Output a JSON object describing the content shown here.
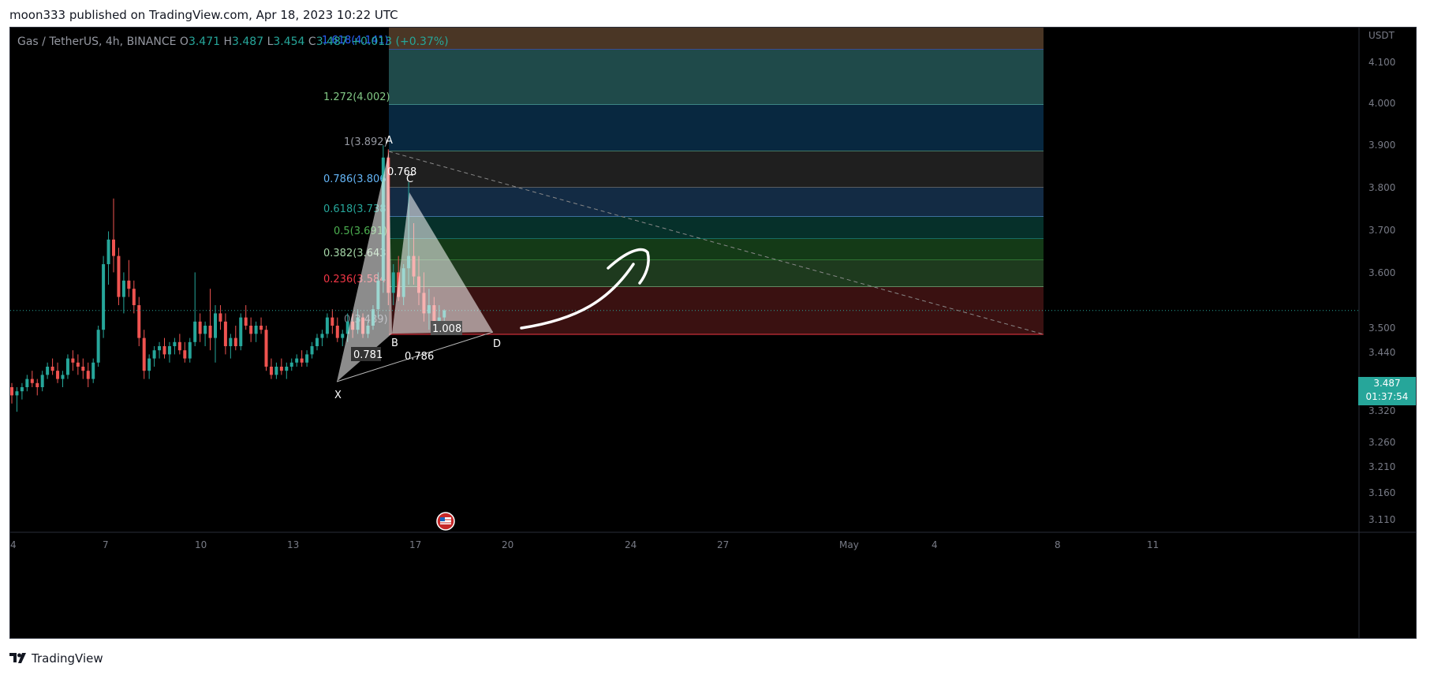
{
  "header": {
    "published_text": "moon333 published on TradingView.com, Apr 18, 2023 10:22 UTC"
  },
  "legend": {
    "symbol": "Gas / TetherUS, 4h, BINANCE",
    "open_label": "O",
    "open": "3.471",
    "high_label": "H",
    "high": "3.487",
    "low_label": "L",
    "low": "3.454",
    "close_label": "C",
    "close": "3.487",
    "change": "+0.013 (+0.37%)"
  },
  "price_axis": {
    "currency": "USDT",
    "ticks": [
      "4.100",
      "4.000",
      "3.900",
      "3.800",
      "3.700",
      "3.600",
      "3.500",
      "3.440",
      "3.380",
      "3.320",
      "3.260",
      "3.210",
      "3.160",
      "3.110"
    ]
  },
  "time_axis": {
    "ticks": [
      "4",
      "7",
      "10",
      "13",
      "17",
      "20",
      "24",
      "27",
      "May",
      "4",
      "8",
      "11"
    ]
  },
  "current_price": {
    "price": "3.487",
    "countdown": "01:37:54",
    "color": "#26a69a"
  },
  "fib_levels": [
    {
      "label": "1.618(4.141)",
      "color": "#2962ff"
    },
    {
      "label": "1.272(4.002)",
      "color": "#81c784"
    },
    {
      "label": "1(3.892)",
      "color": "#9598a1"
    },
    {
      "label": "0.786(3.806)",
      "color": "#64b5f6"
    },
    {
      "label": "0.618(3.738)",
      "color": "#26a69a"
    },
    {
      "label": "0.5(3.691)",
      "color": "#4caf50"
    },
    {
      "label": "0.382(3.643)",
      "color": "#a5d6a7"
    },
    {
      "label": "0.236(3.584)",
      "color": "#f23645"
    },
    {
      "label": "0(3.489)",
      "color": "#787b86"
    }
  ],
  "pattern": {
    "points": [
      "X",
      "A",
      "B",
      "C",
      "D"
    ],
    "ratios": {
      "xab": "0.781",
      "abc_top": "0.768",
      "bcd": "0.786",
      "xad": "1.008"
    }
  },
  "footer": {
    "brand": "TradingView"
  },
  "colors": {
    "up": "#26a69a",
    "down": "#ef5350",
    "background": "#000000"
  },
  "chart_data": {
    "type": "candlestick",
    "symbol": "Gas / TetherUS",
    "timeframe": "4h",
    "ylim": [
      3.09,
      4.2
    ],
    "candles": [
      [
        3.3,
        3.31,
        3.26,
        3.28
      ],
      [
        3.28,
        3.3,
        3.24,
        3.29
      ],
      [
        3.29,
        3.31,
        3.27,
        3.3
      ],
      [
        3.3,
        3.33,
        3.29,
        3.32
      ],
      [
        3.32,
        3.34,
        3.3,
        3.31
      ],
      [
        3.31,
        3.32,
        3.28,
        3.3
      ],
      [
        3.3,
        3.34,
        3.29,
        3.33
      ],
      [
        3.33,
        3.36,
        3.32,
        3.35
      ],
      [
        3.35,
        3.37,
        3.33,
        3.34
      ],
      [
        3.34,
        3.36,
        3.31,
        3.32
      ],
      [
        3.32,
        3.34,
        3.3,
        3.33
      ],
      [
        3.33,
        3.38,
        3.32,
        3.37
      ],
      [
        3.37,
        3.39,
        3.34,
        3.36
      ],
      [
        3.36,
        3.38,
        3.33,
        3.35
      ],
      [
        3.35,
        3.37,
        3.32,
        3.34
      ],
      [
        3.34,
        3.36,
        3.3,
        3.32
      ],
      [
        3.32,
        3.37,
        3.31,
        3.36
      ],
      [
        3.36,
        3.45,
        3.35,
        3.44
      ],
      [
        3.44,
        3.62,
        3.42,
        3.6
      ],
      [
        3.6,
        3.68,
        3.55,
        3.66
      ],
      [
        3.66,
        3.76,
        3.58,
        3.62
      ],
      [
        3.62,
        3.64,
        3.5,
        3.52
      ],
      [
        3.52,
        3.58,
        3.48,
        3.56
      ],
      [
        3.56,
        3.61,
        3.52,
        3.54
      ],
      [
        3.54,
        3.56,
        3.48,
        3.5
      ],
      [
        3.5,
        3.52,
        3.4,
        3.42
      ],
      [
        3.42,
        3.44,
        3.32,
        3.34
      ],
      [
        3.34,
        3.38,
        3.32,
        3.37
      ],
      [
        3.37,
        3.4,
        3.35,
        3.39
      ],
      [
        3.39,
        3.41,
        3.37,
        3.4
      ],
      [
        3.4,
        3.42,
        3.37,
        3.38
      ],
      [
        3.38,
        3.41,
        3.36,
        3.4
      ],
      [
        3.4,
        3.42,
        3.38,
        3.41
      ],
      [
        3.41,
        3.43,
        3.38,
        3.39
      ],
      [
        3.39,
        3.41,
        3.36,
        3.37
      ],
      [
        3.37,
        3.42,
        3.36,
        3.41
      ],
      [
        3.41,
        3.58,
        3.4,
        3.46
      ],
      [
        3.46,
        3.48,
        3.41,
        3.43
      ],
      [
        3.43,
        3.46,
        3.4,
        3.45
      ],
      [
        3.45,
        3.54,
        3.39,
        3.42
      ],
      [
        3.42,
        3.5,
        3.36,
        3.48
      ],
      [
        3.48,
        3.5,
        3.44,
        3.46
      ],
      [
        3.46,
        3.48,
        3.38,
        3.4
      ],
      [
        3.4,
        3.43,
        3.37,
        3.42
      ],
      [
        3.42,
        3.45,
        3.39,
        3.4
      ],
      [
        3.4,
        3.48,
        3.39,
        3.47
      ],
      [
        3.47,
        3.5,
        3.44,
        3.45
      ],
      [
        3.45,
        3.47,
        3.41,
        3.43
      ],
      [
        3.43,
        3.46,
        3.41,
        3.45
      ],
      [
        3.45,
        3.47,
        3.43,
        3.44
      ],
      [
        3.44,
        3.45,
        3.34,
        3.35
      ],
      [
        3.35,
        3.37,
        3.32,
        3.33
      ],
      [
        3.33,
        3.36,
        3.32,
        3.35
      ],
      [
        3.35,
        3.37,
        3.33,
        3.34
      ],
      [
        3.34,
        3.36,
        3.32,
        3.35
      ],
      [
        3.35,
        3.37,
        3.34,
        3.36
      ],
      [
        3.36,
        3.38,
        3.35,
        3.37
      ],
      [
        3.37,
        3.39,
        3.35,
        3.36
      ],
      [
        3.36,
        3.39,
        3.35,
        3.38
      ],
      [
        3.38,
        3.41,
        3.37,
        3.4
      ],
      [
        3.4,
        3.43,
        3.39,
        3.42
      ],
      [
        3.42,
        3.44,
        3.4,
        3.43
      ],
      [
        3.43,
        3.48,
        3.42,
        3.47
      ],
      [
        3.47,
        3.49,
        3.43,
        3.45
      ],
      [
        3.45,
        3.47,
        3.41,
        3.42
      ],
      [
        3.42,
        3.44,
        3.4,
        3.43
      ],
      [
        3.43,
        3.48,
        3.41,
        3.46
      ],
      [
        3.46,
        3.48,
        3.42,
        3.44
      ],
      [
        3.44,
        3.49,
        3.43,
        3.47
      ],
      [
        3.47,
        3.48,
        3.42,
        3.43
      ],
      [
        3.43,
        3.46,
        3.42,
        3.45
      ],
      [
        3.45,
        3.5,
        3.44,
        3.49
      ],
      [
        3.49,
        3.58,
        3.47,
        3.56
      ],
      [
        3.56,
        3.89,
        3.53,
        3.86
      ],
      [
        3.86,
        3.88,
        3.5,
        3.53
      ],
      [
        3.53,
        3.6,
        3.5,
        3.58
      ],
      [
        3.58,
        3.62,
        3.51,
        3.52
      ],
      [
        3.52,
        3.6,
        3.5,
        3.59
      ],
      [
        3.59,
        3.8,
        3.55,
        3.62
      ],
      [
        3.62,
        3.7,
        3.55,
        3.57
      ],
      [
        3.57,
        3.62,
        3.5,
        3.53
      ],
      [
        3.53,
        3.58,
        3.46,
        3.48
      ],
      [
        3.48,
        3.54,
        3.44,
        3.5
      ],
      [
        3.5,
        3.52,
        3.44,
        3.46
      ],
      [
        3.46,
        3.5,
        3.45,
        3.47
      ],
      [
        3.47,
        3.49,
        3.45,
        3.487
      ]
    ]
  }
}
